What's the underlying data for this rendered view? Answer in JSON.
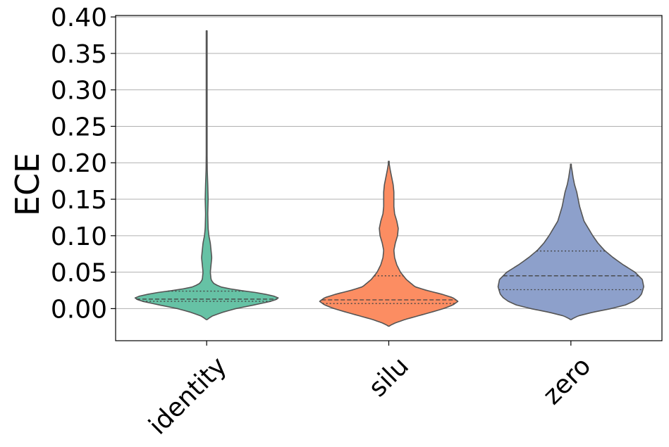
{
  "chart_data": {
    "type": "violin",
    "title": "",
    "xlabel": "",
    "ylabel": "ECE",
    "ylim": [
      -0.044,
      0.402
    ],
    "yticks": [
      "0.00",
      "0.05",
      "0.10",
      "0.15",
      "0.20",
      "0.25",
      "0.30",
      "0.35",
      "0.40"
    ],
    "ytick_values": [
      0.0,
      0.05,
      0.1,
      0.15,
      0.2,
      0.25,
      0.3,
      0.35,
      0.4
    ],
    "grid": "y",
    "categories": [
      "identity",
      "silu",
      "zero"
    ],
    "series": [
      {
        "category": "identity",
        "color": "#66c2a5",
        "q1": 0.01,
        "median": 0.013,
        "q3": 0.024,
        "min": -0.015,
        "max": 0.381,
        "profile": [
          [
            -0.015,
            0.0
          ],
          [
            -0.01,
            0.08
          ],
          [
            -0.005,
            0.22
          ],
          [
            0.0,
            0.4
          ],
          [
            0.005,
            0.65
          ],
          [
            0.01,
            0.88
          ],
          [
            0.014,
            1.0
          ],
          [
            0.018,
            0.9
          ],
          [
            0.022,
            0.68
          ],
          [
            0.026,
            0.38
          ],
          [
            0.03,
            0.18
          ],
          [
            0.035,
            0.09
          ],
          [
            0.04,
            0.06
          ],
          [
            0.05,
            0.05
          ],
          [
            0.06,
            0.06
          ],
          [
            0.07,
            0.07
          ],
          [
            0.08,
            0.06
          ],
          [
            0.09,
            0.05
          ],
          [
            0.1,
            0.03
          ],
          [
            0.11,
            0.02
          ],
          [
            0.13,
            0.015
          ],
          [
            0.15,
            0.02
          ],
          [
            0.17,
            0.015
          ],
          [
            0.19,
            0.008
          ],
          [
            0.22,
            0.005
          ],
          [
            0.26,
            0.004
          ],
          [
            0.3,
            0.004
          ],
          [
            0.34,
            0.003
          ],
          [
            0.381,
            0.0
          ]
        ]
      },
      {
        "category": "silu",
        "color": "#fc8d62",
        "q1": 0.007,
        "median": 0.012,
        "q3": 0.045,
        "min": -0.024,
        "max": 0.202,
        "profile": [
          [
            -0.024,
            0.0
          ],
          [
            -0.02,
            0.08
          ],
          [
            -0.015,
            0.22
          ],
          [
            -0.01,
            0.4
          ],
          [
            -0.005,
            0.58
          ],
          [
            0.0,
            0.75
          ],
          [
            0.005,
            0.88
          ],
          [
            0.01,
            0.95
          ],
          [
            0.015,
            0.88
          ],
          [
            0.02,
            0.72
          ],
          [
            0.025,
            0.52
          ],
          [
            0.03,
            0.36
          ],
          [
            0.04,
            0.24
          ],
          [
            0.05,
            0.16
          ],
          [
            0.06,
            0.11
          ],
          [
            0.07,
            0.08
          ],
          [
            0.08,
            0.07
          ],
          [
            0.09,
            0.09
          ],
          [
            0.1,
            0.12
          ],
          [
            0.11,
            0.13
          ],
          [
            0.12,
            0.11
          ],
          [
            0.13,
            0.08
          ],
          [
            0.14,
            0.07
          ],
          [
            0.15,
            0.07
          ],
          [
            0.16,
            0.07
          ],
          [
            0.17,
            0.06
          ],
          [
            0.18,
            0.04
          ],
          [
            0.19,
            0.02
          ],
          [
            0.202,
            0.0
          ]
        ]
      },
      {
        "category": "zero",
        "color": "#8da0cb",
        "q1": 0.026,
        "median": 0.045,
        "q3": 0.079,
        "min": -0.015,
        "max": 0.198,
        "profile": [
          [
            -0.015,
            0.0
          ],
          [
            -0.01,
            0.1
          ],
          [
            -0.005,
            0.3
          ],
          [
            0.0,
            0.55
          ],
          [
            0.005,
            0.75
          ],
          [
            0.01,
            0.86
          ],
          [
            0.015,
            0.93
          ],
          [
            0.02,
            0.97
          ],
          [
            0.03,
            1.0
          ],
          [
            0.04,
            0.98
          ],
          [
            0.05,
            0.88
          ],
          [
            0.06,
            0.72
          ],
          [
            0.07,
            0.58
          ],
          [
            0.08,
            0.46
          ],
          [
            0.09,
            0.37
          ],
          [
            0.1,
            0.3
          ],
          [
            0.11,
            0.24
          ],
          [
            0.12,
            0.18
          ],
          [
            0.13,
            0.15
          ],
          [
            0.14,
            0.12
          ],
          [
            0.15,
            0.1
          ],
          [
            0.16,
            0.08
          ],
          [
            0.17,
            0.05
          ],
          [
            0.18,
            0.03
          ],
          [
            0.19,
            0.015
          ],
          [
            0.198,
            0.0
          ]
        ]
      }
    ]
  }
}
